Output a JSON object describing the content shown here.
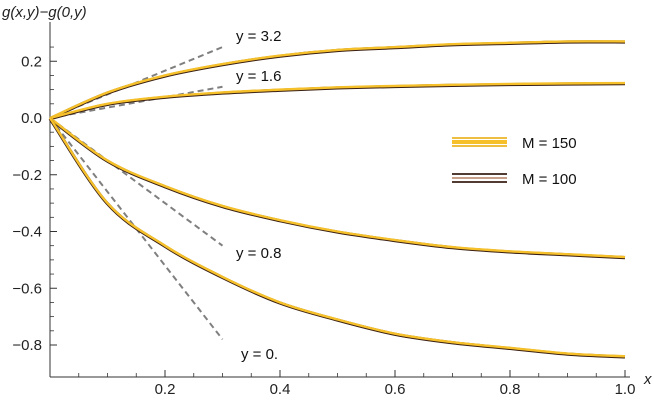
{
  "chart_data": {
    "type": "line",
    "title": "",
    "xlabel": "x",
    "ylabel": "g(x,y)−g(0,y)",
    "xlim": [
      0,
      1.0
    ],
    "ylim": [
      -0.9,
      0.3
    ],
    "x_ticks": [
      0.2,
      0.4,
      0.6,
      0.8,
      1.0
    ],
    "x_tick_labels": [
      "0.2",
      "0.4",
      "0.6",
      "0.8",
      "1.0"
    ],
    "y_ticks": [
      0.2,
      0.0,
      -0.2,
      -0.4,
      -0.6,
      -0.8
    ],
    "y_tick_labels": [
      "0.2",
      "0.0",
      "−0.2",
      "−0.4",
      "−0.6",
      "−0.8"
    ],
    "grid": false,
    "legend_position": "right",
    "legend": [
      {
        "name": "M = 150",
        "color": "#f5c02a"
      },
      {
        "name": "M = 100",
        "color": "#3a1f14"
      }
    ],
    "curves": [
      {
        "label": "y = 3.2",
        "x": [
          0,
          0.1,
          0.2,
          0.3,
          0.4,
          0.5,
          0.6,
          0.7,
          0.8,
          0.9,
          1.0
        ],
        "y": [
          0,
          0.09,
          0.15,
          0.19,
          0.22,
          0.24,
          0.25,
          0.26,
          0.265,
          0.27,
          0.27
        ]
      },
      {
        "label": "y = 1.6",
        "x": [
          0,
          0.1,
          0.2,
          0.3,
          0.4,
          0.5,
          0.6,
          0.7,
          0.8,
          0.9,
          1.0
        ],
        "y": [
          0,
          0.05,
          0.075,
          0.09,
          0.1,
          0.108,
          0.113,
          0.117,
          0.12,
          0.122,
          0.123
        ]
      },
      {
        "label": "y = 0.8",
        "x": [
          0,
          0.1,
          0.2,
          0.3,
          0.4,
          0.5,
          0.6,
          0.7,
          0.8,
          0.9,
          1.0
        ],
        "y": [
          0,
          -0.15,
          -0.24,
          -0.31,
          -0.36,
          -0.4,
          -0.43,
          -0.455,
          -0.47,
          -0.48,
          -0.49
        ]
      },
      {
        "label": "y = 0.",
        "x": [
          0,
          0.1,
          0.2,
          0.3,
          0.4,
          0.5,
          0.6,
          0.7,
          0.8,
          0.9,
          1.0
        ],
        "y": [
          0,
          -0.3,
          -0.45,
          -0.56,
          -0.65,
          -0.71,
          -0.76,
          -0.79,
          -0.81,
          -0.83,
          -0.84
        ]
      }
    ],
    "tangent_lines": [
      {
        "label": "y = 3.2",
        "x": [
          0,
          0.3
        ],
        "y": [
          0,
          0.25
        ]
      },
      {
        "label": "y = 1.6",
        "x": [
          0,
          0.3
        ],
        "y": [
          0,
          0.11
        ]
      },
      {
        "label": "y = 0.8",
        "x": [
          0,
          0.3
        ],
        "y": [
          0,
          -0.45
        ]
      },
      {
        "label": "y = 0.",
        "x": [
          0,
          0.3
        ],
        "y": [
          0,
          -0.78
        ]
      }
    ],
    "series_colors": {
      "m150": "#f5c02a",
      "m100": "#3a1f14",
      "tangent": "#7f7f7f",
      "axis": "#333333"
    }
  }
}
